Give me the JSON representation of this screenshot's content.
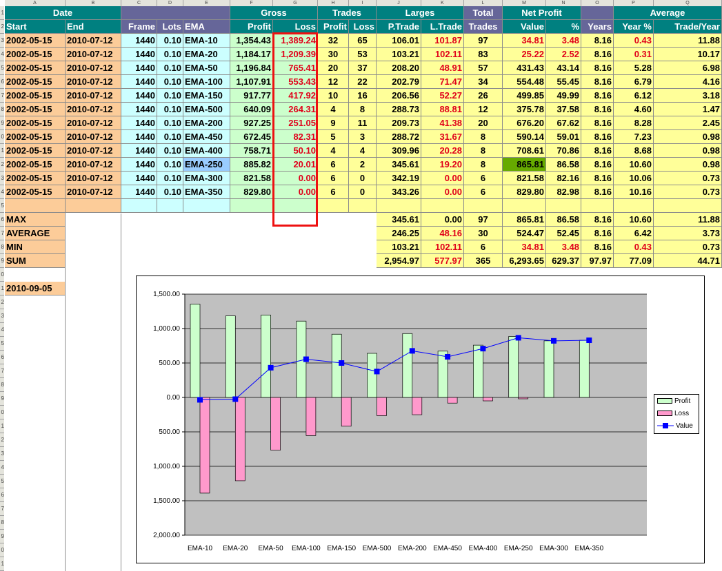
{
  "columns": [
    "A",
    "B",
    "C",
    "D",
    "E",
    "F",
    "G",
    "H",
    "I",
    "J",
    "K",
    "L",
    "M",
    "N",
    "O",
    "P",
    "Q"
  ],
  "row_numbers": [
    "1",
    "2",
    "3",
    "4",
    "5",
    "6",
    "7",
    "8",
    "9",
    "0",
    "1",
    "2",
    "3",
    "4",
    "5",
    "6",
    "7",
    "8",
    "9",
    "0",
    "1",
    "2",
    "3",
    "4",
    "5",
    "6",
    "7",
    "8",
    "9",
    "0",
    "1",
    "2",
    "3",
    "4",
    "5",
    "6",
    "7",
    "8",
    "9",
    "0",
    "1"
  ],
  "header1": {
    "date": "Date",
    "gross": "Gross",
    "trades": "Trades",
    "larges": "Larges",
    "total": "Total",
    "net_profit": "Net Profit",
    "average": "Average"
  },
  "header2": [
    "Start",
    "End",
    "Frame",
    "Lots",
    "EMA",
    "Profit",
    "Loss",
    "Profit",
    "Loss",
    "P.Trade",
    "L.Trade",
    "Trades",
    "Value",
    "%",
    "Years",
    "Year %",
    "Trade/Year"
  ],
  "rows": [
    [
      "2002-05-15",
      "2010-07-12",
      "1440",
      "0.10",
      "EMA-10",
      "1,354.43",
      "1,389.24",
      "32",
      "65",
      "106.01",
      "101.87",
      "97",
      "34.81",
      "3.48",
      "8.16",
      "0.43",
      "11.88"
    ],
    [
      "2002-05-15",
      "2010-07-12",
      "1440",
      "0.10",
      "EMA-20",
      "1,184.17",
      "1,209.39",
      "30",
      "53",
      "103.21",
      "102.11",
      "83",
      "25.22",
      "2.52",
      "8.16",
      "0.31",
      "10.17"
    ],
    [
      "2002-05-15",
      "2010-07-12",
      "1440",
      "0.10",
      "EMA-50",
      "1,196.84",
      "765.41",
      "20",
      "37",
      "208.20",
      "48.91",
      "57",
      "431.43",
      "43.14",
      "8.16",
      "5.28",
      "6.98"
    ],
    [
      "2002-05-15",
      "2010-07-12",
      "1440",
      "0.10",
      "EMA-100",
      "1,107.91",
      "553.43",
      "12",
      "22",
      "202.79",
      "71.47",
      "34",
      "554.48",
      "55.45",
      "8.16",
      "6.79",
      "4.16"
    ],
    [
      "2002-05-15",
      "2010-07-12",
      "1440",
      "0.10",
      "EMA-150",
      "917.77",
      "417.92",
      "10",
      "16",
      "206.56",
      "52.27",
      "26",
      "499.85",
      "49.99",
      "8.16",
      "6.12",
      "3.18"
    ],
    [
      "2002-05-15",
      "2010-07-12",
      "1440",
      "0.10",
      "EMA-500",
      "640.09",
      "264.31",
      "4",
      "8",
      "288.73",
      "88.81",
      "12",
      "375.78",
      "37.58",
      "8.16",
      "4.60",
      "1.47"
    ],
    [
      "2002-05-15",
      "2010-07-12",
      "1440",
      "0.10",
      "EMA-200",
      "927.25",
      "251.05",
      "9",
      "11",
      "209.73",
      "41.38",
      "20",
      "676.20",
      "67.62",
      "8.16",
      "8.28",
      "2.45"
    ],
    [
      "2002-05-15",
      "2010-07-12",
      "1440",
      "0.10",
      "EMA-450",
      "672.45",
      "82.31",
      "5",
      "3",
      "288.72",
      "31.67",
      "8",
      "590.14",
      "59.01",
      "8.16",
      "7.23",
      "0.98"
    ],
    [
      "2002-05-15",
      "2010-07-12",
      "1440",
      "0.10",
      "EMA-400",
      "758.71",
      "50.10",
      "4",
      "4",
      "309.96",
      "20.28",
      "8",
      "708.61",
      "70.86",
      "8.16",
      "8.68",
      "0.98"
    ],
    [
      "2002-05-15",
      "2010-07-12",
      "1440",
      "0.10",
      "EMA-250",
      "885.82",
      "20.01",
      "6",
      "2",
      "345.61",
      "19.20",
      "8",
      "865.81",
      "86.58",
      "8.16",
      "10.60",
      "0.98"
    ],
    [
      "2002-05-15",
      "2010-07-12",
      "1440",
      "0.10",
      "EMA-300",
      "821.58",
      "0.00",
      "6",
      "0",
      "342.19",
      "0.00",
      "6",
      "821.58",
      "82.16",
      "8.16",
      "10.06",
      "0.73"
    ],
    [
      "2002-05-15",
      "2010-07-12",
      "1440",
      "0.10",
      "EMA-350",
      "829.80",
      "0.00",
      "6",
      "0",
      "343.26",
      "0.00",
      "6",
      "829.80",
      "82.98",
      "8.16",
      "10.16",
      "0.73"
    ]
  ],
  "stats": [
    {
      "label": "MAX",
      "values": [
        "345.61",
        "0.00",
        "97",
        "865.81",
        "86.58",
        "8.16",
        "10.60",
        "11.88"
      ]
    },
    {
      "label": "AVERAGE",
      "values": [
        "246.25",
        "48.16",
        "30",
        "524.47",
        "52.45",
        "8.16",
        "6.42",
        "3.73"
      ]
    },
    {
      "label": "MIN",
      "values": [
        "103.21",
        "102.11",
        "6",
        "34.81",
        "3.48",
        "8.16",
        "0.43",
        "0.73"
      ]
    },
    {
      "label": "SUM",
      "values": [
        "2,954.97",
        "577.97",
        "365",
        "6,293.65",
        "629.37",
        "97.97",
        "77.09",
        "44.71"
      ]
    }
  ],
  "date_cell": "2010-09-05",
  "chart_data": {
    "type": "bar",
    "categories": [
      "EMA-10",
      "EMA-20",
      "EMA-50",
      "EMA-100",
      "EMA-150",
      "EMA-500",
      "EMA-200",
      "EMA-450",
      "EMA-400",
      "EMA-250",
      "EMA-300",
      "EMA-350"
    ],
    "series": [
      {
        "name": "Profit",
        "type": "bar",
        "color": "#ccffcc",
        "values": [
          1354.43,
          1184.17,
          1196.84,
          1107.91,
          917.77,
          640.09,
          927.25,
          672.45,
          758.71,
          885.82,
          821.58,
          829.8
        ]
      },
      {
        "name": "Loss",
        "type": "bar",
        "color": "#ff99cc",
        "values": [
          -1389.24,
          -1209.39,
          -765.41,
          -553.43,
          -417.92,
          -264.31,
          -251.05,
          -82.31,
          -50.1,
          -20.01,
          0,
          0
        ]
      },
      {
        "name": "Value",
        "type": "line",
        "color": "#0000ff",
        "values": [
          -34.81,
          -25.22,
          431.43,
          554.48,
          499.85,
          375.78,
          676.2,
          590.14,
          708.61,
          865.81,
          821.58,
          829.8
        ]
      }
    ],
    "ylim": [
      -2000,
      1500
    ],
    "yticks": [
      1500,
      1000,
      500,
      0,
      -500,
      -1000,
      -1500,
      -2000
    ],
    "ytick_labels": [
      "1,500.00",
      "1,000.00",
      "500.00",
      "0.00",
      "500.00",
      "1,000.00",
      "1,500.00",
      "2,000.00"
    ],
    "plot_background": "#c0c0c0",
    "grid": true,
    "legend": "right",
    "title": "",
    "xlabel": "",
    "ylabel": ""
  }
}
